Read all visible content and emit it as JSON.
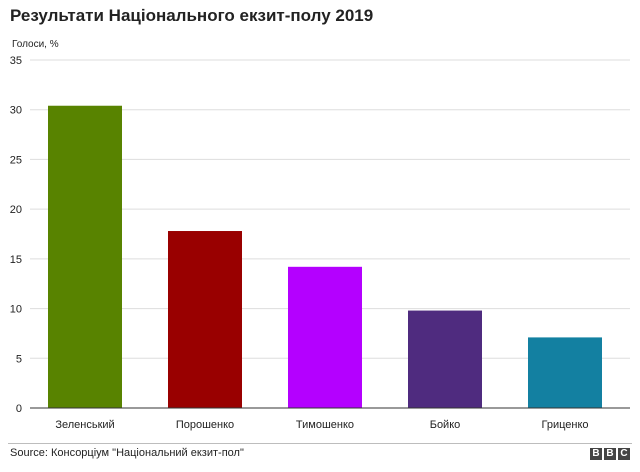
{
  "title": "Результати Національного екзит-полу 2019",
  "source": "Source: Консорціум \"Національний екзит-пол\"",
  "logo": "BBC",
  "chart_data": {
    "type": "bar",
    "ylabel": "Голоси, %",
    "ylim": [
      0,
      35
    ],
    "yticks": [
      0,
      5,
      10,
      15,
      20,
      25,
      30,
      35
    ],
    "grid": true,
    "categories": [
      "Зеленський",
      "Порошенко",
      "Тимошенко",
      "Бойко",
      "Гриценко"
    ],
    "values": [
      30.4,
      17.8,
      14.2,
      9.8,
      7.1
    ],
    "colors": [
      "#588300",
      "#990000",
      "#b400ff",
      "#4f2b7f",
      "#1380a1"
    ]
  }
}
